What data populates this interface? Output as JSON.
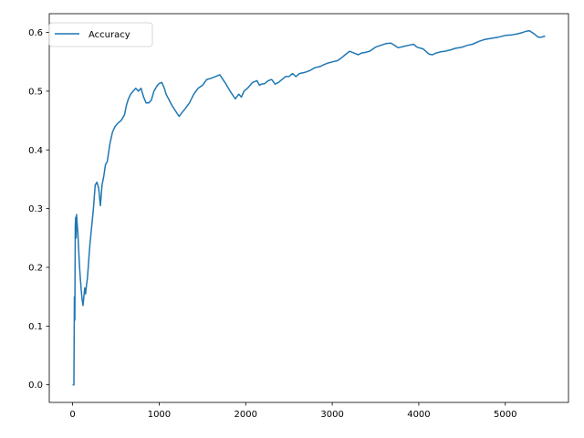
{
  "chart_data": {
    "type": "line",
    "title": "",
    "xlabel": "",
    "ylabel": "",
    "xlim": [
      -270,
      5730
    ],
    "ylim": [
      -0.03,
      0.632
    ],
    "xticks": [
      0,
      1000,
      2000,
      3000,
      4000,
      5000
    ],
    "xtick_labels": [
      "0",
      "1000",
      "2000",
      "3000",
      "4000",
      "5000"
    ],
    "yticks": [
      0.0,
      0.1,
      0.2,
      0.3,
      0.4,
      0.5,
      0.6
    ],
    "ytick_labels": [
      "0.0",
      "0.1",
      "0.2",
      "0.3",
      "0.4",
      "0.5",
      "0.6"
    ],
    "grid": false,
    "legend_position": "top-left",
    "series": [
      {
        "name": "Accuracy",
        "color": "#1f77b4",
        "x": [
          0,
          15,
          20,
          25,
          30,
          35,
          40,
          45,
          50,
          60,
          70,
          80,
          90,
          100,
          110,
          120,
          130,
          140,
          150,
          160,
          170,
          180,
          190,
          200,
          220,
          240,
          260,
          280,
          300,
          320,
          340,
          360,
          380,
          400,
          430,
          460,
          490,
          520,
          560,
          600,
          620,
          640,
          670,
          700,
          730,
          760,
          790,
          820,
          850,
          880,
          910,
          940,
          980,
          1000,
          1030,
          1060,
          1080,
          1150,
          1230,
          1260,
          1300,
          1350,
          1400,
          1450,
          1500,
          1550,
          1600,
          1650,
          1700,
          1760,
          1820,
          1880,
          1920,
          1950,
          1980,
          2020,
          2080,
          2130,
          2160,
          2180,
          2220,
          2260,
          2300,
          2340,
          2380,
          2420,
          2460,
          2500,
          2540,
          2580,
          2620,
          2680,
          2740,
          2800,
          2860,
          2900,
          2950,
          3000,
          3060,
          3100,
          3150,
          3200,
          3250,
          3300,
          3340,
          3380,
          3430,
          3500,
          3560,
          3620,
          3680,
          3760,
          3820,
          3880,
          3940,
          3980,
          4050,
          4120,
          4160,
          4200,
          4250,
          4300,
          4360,
          4420,
          4500,
          4560,
          4620,
          4700,
          4760,
          4840,
          4920,
          5000,
          5080,
          5150,
          5200,
          5240,
          5280,
          5330,
          5380,
          5420,
          5460
        ],
        "y": [
          0.0,
          0.0,
          0.15,
          0.11,
          0.27,
          0.285,
          0.25,
          0.29,
          0.28,
          0.26,
          0.23,
          0.2,
          0.18,
          0.16,
          0.145,
          0.135,
          0.15,
          0.165,
          0.155,
          0.17,
          0.18,
          0.2,
          0.22,
          0.24,
          0.27,
          0.3,
          0.34,
          0.345,
          0.335,
          0.305,
          0.34,
          0.355,
          0.375,
          0.38,
          0.41,
          0.43,
          0.44,
          0.445,
          0.45,
          0.46,
          0.475,
          0.485,
          0.495,
          0.5,
          0.505,
          0.5,
          0.505,
          0.49,
          0.48,
          0.48,
          0.485,
          0.5,
          0.51,
          0.513,
          0.515,
          0.505,
          0.495,
          0.475,
          0.457,
          0.463,
          0.47,
          0.48,
          0.495,
          0.505,
          0.51,
          0.52,
          0.522,
          0.525,
          0.528,
          0.515,
          0.5,
          0.487,
          0.495,
          0.49,
          0.5,
          0.505,
          0.515,
          0.518,
          0.51,
          0.512,
          0.513,
          0.518,
          0.52,
          0.512,
          0.515,
          0.52,
          0.525,
          0.525,
          0.53,
          0.525,
          0.53,
          0.532,
          0.535,
          0.54,
          0.542,
          0.545,
          0.548,
          0.55,
          0.552,
          0.556,
          0.562,
          0.568,
          0.565,
          0.562,
          0.565,
          0.566,
          0.568,
          0.575,
          0.578,
          0.581,
          0.582,
          0.574,
          0.576,
          0.578,
          0.58,
          0.575,
          0.572,
          0.563,
          0.562,
          0.565,
          0.567,
          0.568,
          0.57,
          0.573,
          0.575,
          0.578,
          0.58,
          0.585,
          0.588,
          0.59,
          0.592,
          0.595,
          0.596,
          0.598,
          0.6,
          0.602,
          0.603,
          0.598,
          0.592,
          0.592,
          0.594
        ]
      }
    ]
  }
}
